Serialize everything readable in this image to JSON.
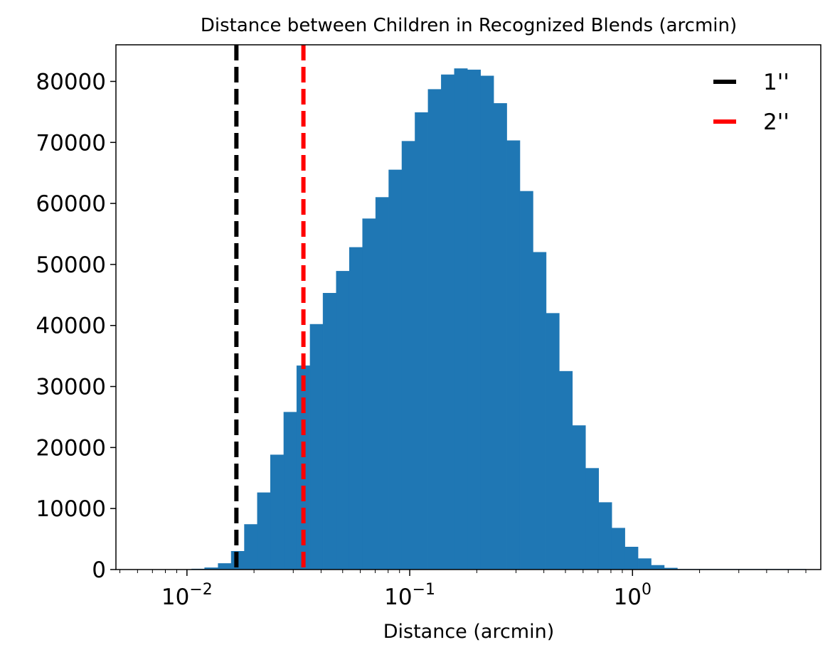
{
  "chart_data": {
    "type": "bar",
    "title": "Distance between Children in Recognized Blends (arcmin)",
    "xlabel": "Distance (arcmin)",
    "ylabel": "",
    "xscale": "log",
    "xlim": [
      0.0048,
      7.0
    ],
    "ylim": [
      0,
      86000
    ],
    "grid": false,
    "legend_position": "top-right",
    "colors": {
      "bars": "#1f77b4",
      "line_1": "#000000",
      "line_2": "#ff0000"
    },
    "yticks": [
      {
        "value": 0,
        "label": "0"
      },
      {
        "value": 10000,
        "label": "10000"
      },
      {
        "value": 20000,
        "label": "20000"
      },
      {
        "value": 30000,
        "label": "30000"
      },
      {
        "value": 40000,
        "label": "40000"
      },
      {
        "value": 50000,
        "label": "50000"
      },
      {
        "value": 60000,
        "label": "60000"
      },
      {
        "value": 70000,
        "label": "70000"
      },
      {
        "value": 80000,
        "label": "80000"
      }
    ],
    "xticks": [
      {
        "value": 0.01,
        "base": "10",
        "exp": "−2"
      },
      {
        "value": 0.1,
        "base": "10",
        "exp": "−1"
      },
      {
        "value": 1,
        "base": "10",
        "exp": "0"
      }
    ],
    "bins": [
      {
        "x0": 0.0105,
        "x1": 0.012,
        "count": 100
      },
      {
        "x0": 0.012,
        "x1": 0.0138,
        "count": 300
      },
      {
        "x0": 0.0138,
        "x1": 0.0158,
        "count": 1000
      },
      {
        "x0": 0.0158,
        "x1": 0.0181,
        "count": 3000
      },
      {
        "x0": 0.0181,
        "x1": 0.0207,
        "count": 7400
      },
      {
        "x0": 0.0207,
        "x1": 0.0237,
        "count": 12600
      },
      {
        "x0": 0.0237,
        "x1": 0.0272,
        "count": 18800
      },
      {
        "x0": 0.0272,
        "x1": 0.0311,
        "count": 25800
      },
      {
        "x0": 0.0311,
        "x1": 0.0357,
        "count": 33400
      },
      {
        "x0": 0.0357,
        "x1": 0.0408,
        "count": 40200
      },
      {
        "x0": 0.0408,
        "x1": 0.0468,
        "count": 45300
      },
      {
        "x0": 0.0468,
        "x1": 0.0536,
        "count": 48900
      },
      {
        "x0": 0.0536,
        "x1": 0.0614,
        "count": 52800
      },
      {
        "x0": 0.0614,
        "x1": 0.0703,
        "count": 57500
      },
      {
        "x0": 0.0703,
        "x1": 0.0805,
        "count": 61000
      },
      {
        "x0": 0.0805,
        "x1": 0.0922,
        "count": 65500
      },
      {
        "x0": 0.0922,
        "x1": 0.1056,
        "count": 70200
      },
      {
        "x0": 0.1056,
        "x1": 0.1209,
        "count": 74900
      },
      {
        "x0": 0.1209,
        "x1": 0.1385,
        "count": 78700
      },
      {
        "x0": 0.1385,
        "x1": 0.1586,
        "count": 81100
      },
      {
        "x0": 0.1586,
        "x1": 0.1816,
        "count": 82100
      },
      {
        "x0": 0.1816,
        "x1": 0.208,
        "count": 81900
      },
      {
        "x0": 0.208,
        "x1": 0.2382,
        "count": 80900
      },
      {
        "x0": 0.2382,
        "x1": 0.2728,
        "count": 76400
      },
      {
        "x0": 0.2728,
        "x1": 0.3124,
        "count": 70300
      },
      {
        "x0": 0.3124,
        "x1": 0.3578,
        "count": 62000
      },
      {
        "x0": 0.3578,
        "x1": 0.4098,
        "count": 52000
      },
      {
        "x0": 0.4098,
        "x1": 0.4693,
        "count": 42000
      },
      {
        "x0": 0.4693,
        "x1": 0.5375,
        "count": 32500
      },
      {
        "x0": 0.5375,
        "x1": 0.6156,
        "count": 23600
      },
      {
        "x0": 0.6156,
        "x1": 0.705,
        "count": 16600
      },
      {
        "x0": 0.705,
        "x1": 0.8074,
        "count": 11000
      },
      {
        "x0": 0.8074,
        "x1": 0.9247,
        "count": 6800
      },
      {
        "x0": 0.9247,
        "x1": 1.059,
        "count": 3700
      },
      {
        "x0": 1.059,
        "x1": 1.213,
        "count": 1800
      },
      {
        "x0": 1.213,
        "x1": 1.389,
        "count": 700
      },
      {
        "x0": 1.389,
        "x1": 1.591,
        "count": 250
      },
      {
        "x0": 1.591,
        "x1": 6.0,
        "count": 60
      }
    ],
    "vlines": [
      {
        "x": 0.01667,
        "label": "1''",
        "color": "#000000",
        "style": "dashed"
      },
      {
        "x": 0.03333,
        "label": "2''",
        "color": "#ff0000",
        "style": "dashed"
      }
    ]
  }
}
